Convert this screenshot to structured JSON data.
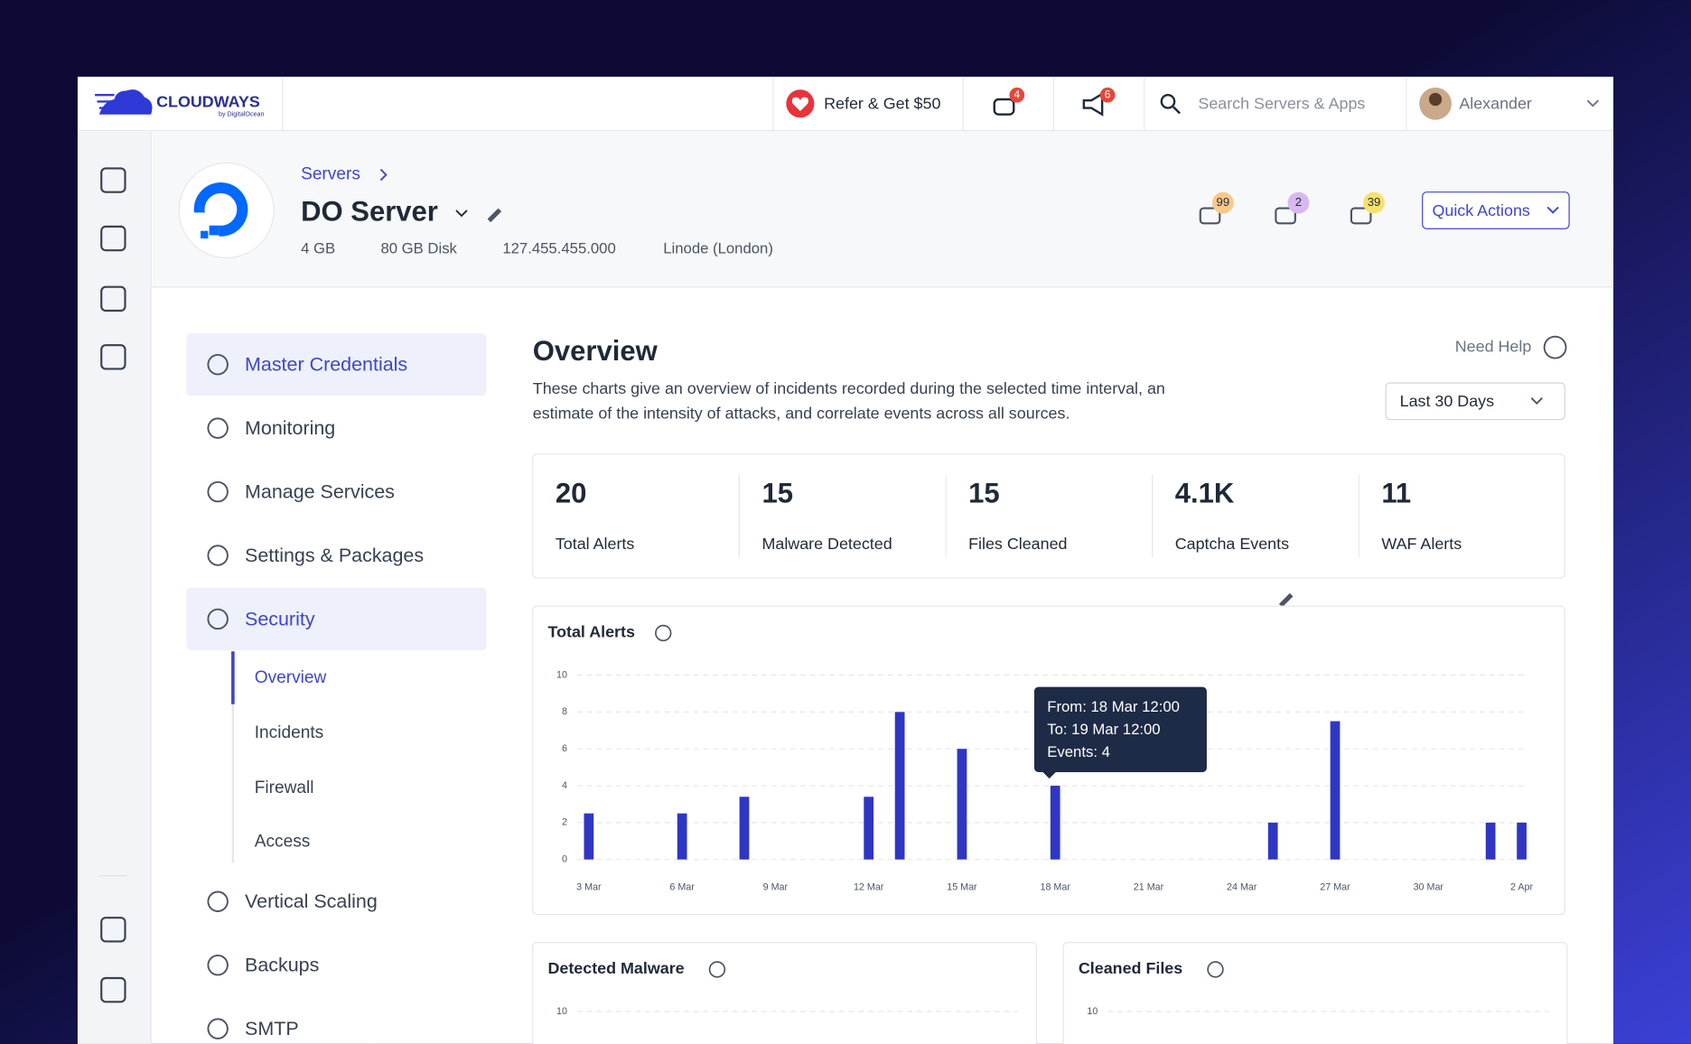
{
  "topbar": {
    "logo": "CLOUDWAYS",
    "logo_sub": "by DigitalOcean",
    "refer": "Refer & Get $50",
    "bot_badge": "4",
    "notify_badge": "6",
    "search_placeholder": "Search Servers & Apps",
    "user": "Alexander"
  },
  "server": {
    "breadcrumb": "Servers",
    "name": "DO Server",
    "specs": [
      "4 GB",
      "80 GB Disk",
      "127.455.455.000",
      "Linode (London)"
    ],
    "badges": [
      "99",
      "2",
      "39"
    ],
    "quick_actions": "Quick Actions"
  },
  "menu": {
    "items": [
      "Master Credentials",
      "Monitoring",
      "Manage Services",
      "Settings & Packages",
      "Security"
    ],
    "sub_items": [
      "Overview",
      "Incidents",
      "Firewall",
      "Access"
    ],
    "items_after": [
      "Vertical Scaling",
      "Backups",
      "SMTP"
    ]
  },
  "overview": {
    "title": "Overview",
    "description_lines": [
      "These charts give an overview of incidents recorded during the selected time interval, an",
      "estimate of the intensity of attacks, and correlate events across all sources."
    ],
    "help": "Need Help",
    "range": "Last 30 Days"
  },
  "stats": [
    {
      "value": "20",
      "label": "Total Alerts"
    },
    {
      "value": "15",
      "label": "Malware Detected"
    },
    {
      "value": "15",
      "label": "Files Cleaned"
    },
    {
      "value": "4.1K",
      "label": "Captcha Events"
    },
    {
      "value": "11",
      "label": "WAF Alerts"
    }
  ],
  "chart_data": [
    {
      "type": "bar",
      "title": "Total Alerts",
      "categories": [
        "3 Mar",
        null,
        null,
        "6 Mar",
        null,
        null,
        "9 Mar",
        null,
        null,
        "12 Mar",
        null,
        null,
        "15 Mar",
        null,
        null,
        "18 Mar",
        null,
        null,
        "21 Mar",
        null,
        null,
        "24 Mar",
        null,
        null,
        "27 Mar",
        null,
        null,
        "30 Mar",
        null,
        null,
        "2 Apr"
      ],
      "values": [
        2.5,
        0,
        0,
        2.5,
        0,
        3.4,
        0,
        0,
        0,
        3.4,
        8,
        0,
        6,
        0,
        0,
        4,
        0,
        0,
        0,
        0,
        0,
        0,
        2,
        0,
        7.5,
        0,
        0,
        0,
        0,
        2,
        2
      ],
      "color": "#2f36c4",
      "ylim": [
        0,
        10
      ],
      "yticks": [
        0,
        2,
        4,
        6,
        8,
        10
      ],
      "grid": true,
      "tooltip": [
        "From: 18 Mar 12:00",
        "To: 19 Mar 12:00",
        "Events: 4"
      ]
    },
    {
      "type": "bar",
      "title": "Detected Malware",
      "ylim": [
        0,
        10
      ],
      "yticks": [
        10
      ],
      "grid": true
    },
    {
      "type": "bar",
      "title": "Cleaned Files",
      "ylim": [
        0,
        10
      ],
      "yticks": [
        10
      ],
      "grid": true
    }
  ]
}
